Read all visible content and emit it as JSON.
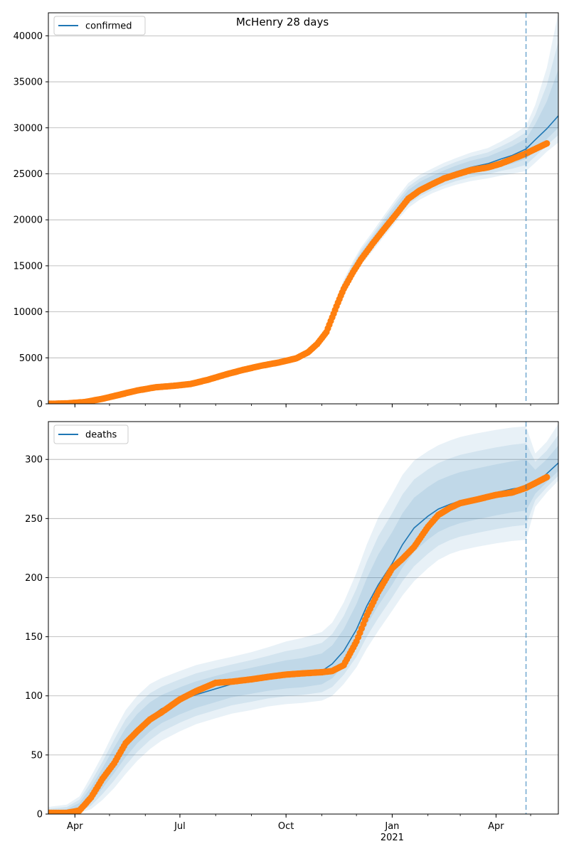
{
  "title": "McHenry 28 days",
  "colors": {
    "model_line": "#1f77b4",
    "observed_points": "#ff7f0e",
    "band": "#1f77b4",
    "forecast_start_line": "#1f77b4",
    "grid": "#b0b0b0"
  },
  "x_ticks": [
    {
      "label": "Apr",
      "date": "2020-04-01",
      "sublabel": ""
    },
    {
      "label": "Jul",
      "date": "2020-07-01",
      "sublabel": ""
    },
    {
      "label": "Oct",
      "date": "2020-10-01",
      "sublabel": ""
    },
    {
      "label": "Jan",
      "date": "2021-01-01",
      "sublabel": "2021"
    },
    {
      "label": "Apr",
      "date": "2021-04-01",
      "sublabel": ""
    }
  ],
  "chart_data": [
    {
      "type": "line",
      "legend": "confirmed",
      "legend_position": "top-left",
      "grid": "horizontal",
      "x_range": [
        "2020-03-09",
        "2021-05-25"
      ],
      "ylim": [
        0,
        42500
      ],
      "yticks": [
        0,
        5000,
        10000,
        15000,
        20000,
        25000,
        30000,
        35000,
        40000
      ],
      "forecast_start": "2021-04-27",
      "model": {
        "dates": [
          "2020-03-09",
          "2020-03-25",
          "2020-04-10",
          "2020-04-25",
          "2020-05-10",
          "2020-05-25",
          "2020-06-10",
          "2020-06-25",
          "2020-07-10",
          "2020-07-25",
          "2020-08-10",
          "2020-08-25",
          "2020-09-10",
          "2020-09-25",
          "2020-10-10",
          "2020-10-20",
          "2020-10-28",
          "2020-11-05",
          "2020-11-10",
          "2020-11-15",
          "2020-11-20",
          "2020-11-28",
          "2020-12-05",
          "2020-12-15",
          "2020-12-25",
          "2021-01-05",
          "2021-01-15",
          "2021-01-25",
          "2021-02-05",
          "2021-02-15",
          "2021-02-25",
          "2021-03-10",
          "2021-03-25",
          "2021-04-05",
          "2021-04-15",
          "2021-04-27",
          "2021-05-05",
          "2021-05-15",
          "2021-05-25"
        ],
        "values": [
          0,
          80,
          250,
          600,
          1050,
          1450,
          1800,
          1950,
          2150,
          2600,
          3200,
          3700,
          4150,
          4500,
          4900,
          5500,
          6400,
          7900,
          9500,
          11200,
          12700,
          14600,
          16000,
          17600,
          19300,
          21100,
          22600,
          23500,
          24200,
          24700,
          25200,
          25700,
          26100,
          26600,
          27000,
          27700,
          28700,
          29900,
          31300
        ],
        "band_outer": [
          [
            0,
            200
          ],
          [
            0,
            250
          ],
          [
            120,
            420
          ],
          [
            420,
            850
          ],
          [
            800,
            1350
          ],
          [
            1150,
            1800
          ],
          [
            1500,
            2150
          ],
          [
            1650,
            2300
          ],
          [
            1850,
            2500
          ],
          [
            2300,
            2950
          ],
          [
            2900,
            3550
          ],
          [
            3400,
            4050
          ],
          [
            3850,
            4500
          ],
          [
            4200,
            4850
          ],
          [
            4600,
            5250
          ],
          [
            5200,
            5850
          ],
          [
            6100,
            6800
          ],
          [
            7500,
            8300
          ],
          [
            9000,
            10050
          ],
          [
            10600,
            11900
          ],
          [
            12000,
            13500
          ],
          [
            13800,
            15500
          ],
          [
            15100,
            17000
          ],
          [
            16600,
            18700
          ],
          [
            18200,
            20500
          ],
          [
            19900,
            22400
          ],
          [
            21300,
            24000
          ],
          [
            22200,
            24900
          ],
          [
            22900,
            25600
          ],
          [
            23400,
            26200
          ],
          [
            23800,
            26700
          ],
          [
            24200,
            27300
          ],
          [
            24500,
            27800
          ],
          [
            24800,
            28500
          ],
          [
            25000,
            29200
          ],
          [
            25300,
            30200
          ],
          [
            26200,
            32500
          ],
          [
            27400,
            36500
          ],
          [
            28400,
            42500
          ]
        ]
      },
      "observed": {
        "dates": [
          "2020-03-09",
          "2020-03-25",
          "2020-04-10",
          "2020-04-25",
          "2020-05-10",
          "2020-05-25",
          "2020-06-10",
          "2020-06-25",
          "2020-07-10",
          "2020-07-25",
          "2020-08-10",
          "2020-08-25",
          "2020-09-10",
          "2020-09-25",
          "2020-10-10",
          "2020-10-20",
          "2020-10-28",
          "2020-11-05",
          "2020-11-10",
          "2020-11-15",
          "2020-11-20",
          "2020-11-28",
          "2020-12-05",
          "2020-12-15",
          "2020-12-25",
          "2021-01-05",
          "2021-01-15",
          "2021-01-25",
          "2021-02-05",
          "2021-02-15",
          "2021-02-25",
          "2021-03-10",
          "2021-03-25",
          "2021-04-05",
          "2021-04-15",
          "2021-04-25",
          "2021-05-05",
          "2021-05-15"
        ],
        "values": [
          0,
          50,
          200,
          550,
          1000,
          1450,
          1800,
          1950,
          2150,
          2600,
          3200,
          3700,
          4150,
          4500,
          4950,
          5600,
          6500,
          7800,
          9400,
          11000,
          12500,
          14300,
          15700,
          17400,
          19000,
          20700,
          22300,
          23200,
          23900,
          24500,
          24900,
          25400,
          25700,
          26100,
          26600,
          27100,
          27700,
          28300
        ]
      }
    },
    {
      "type": "line",
      "legend": "deaths",
      "legend_position": "top-left",
      "grid": "horizontal",
      "x_range": [
        "2020-03-09",
        "2021-05-25"
      ],
      "ylim": [
        0,
        332
      ],
      "yticks": [
        0,
        50,
        100,
        150,
        200,
        250,
        300
      ],
      "forecast_start": "2021-04-27",
      "model": {
        "dates": [
          "2020-03-09",
          "2020-03-25",
          "2020-04-05",
          "2020-04-15",
          "2020-04-25",
          "2020-05-05",
          "2020-05-15",
          "2020-05-25",
          "2020-06-05",
          "2020-06-15",
          "2020-07-01",
          "2020-07-15",
          "2020-08-01",
          "2020-08-15",
          "2020-09-01",
          "2020-09-15",
          "2020-10-01",
          "2020-10-15",
          "2020-11-01",
          "2020-11-10",
          "2020-11-20",
          "2020-12-01",
          "2020-12-10",
          "2020-12-20",
          "2021-01-01",
          "2021-01-10",
          "2021-01-20",
          "2021-02-01",
          "2021-02-10",
          "2021-02-20",
          "2021-03-01",
          "2021-03-15",
          "2021-04-01",
          "2021-04-15",
          "2021-04-27",
          "2021-05-05",
          "2021-05-15",
          "2021-05-25"
        ],
        "values": [
          0,
          1,
          5,
          15,
          30,
          45,
          60,
          72,
          82,
          89,
          96,
          101,
          106,
          110,
          113,
          115,
          117,
          118,
          121,
          127,
          138,
          156,
          176,
          194,
          212,
          228,
          242,
          252,
          258,
          262,
          265,
          268,
          272,
          275,
          277,
          280,
          288,
          297
        ],
        "band_outer": [
          [
            0,
            6
          ],
          [
            0,
            8
          ],
          [
            1,
            15
          ],
          [
            4,
            32
          ],
          [
            12,
            50
          ],
          [
            22,
            70
          ],
          [
            34,
            88
          ],
          [
            45,
            100
          ],
          [
            55,
            110
          ],
          [
            62,
            115
          ],
          [
            70,
            121
          ],
          [
            76,
            126
          ],
          [
            81,
            130
          ],
          [
            85,
            133
          ],
          [
            88,
            137
          ],
          [
            91,
            141
          ],
          [
            93,
            146
          ],
          [
            94,
            149
          ],
          [
            96,
            154
          ],
          [
            100,
            162
          ],
          [
            110,
            179
          ],
          [
            124,
            204
          ],
          [
            140,
            228
          ],
          [
            155,
            251
          ],
          [
            172,
            271
          ],
          [
            185,
            287
          ],
          [
            197,
            299
          ],
          [
            208,
            307
          ],
          [
            215,
            312
          ],
          [
            220,
            316
          ],
          [
            223,
            319
          ],
          [
            226,
            322
          ],
          [
            229,
            325
          ],
          [
            231,
            327
          ],
          [
            232,
            328
          ],
          [
            260,
            305
          ],
          [
            272,
            315
          ],
          [
            282,
            330
          ]
        ]
      },
      "observed": {
        "dates": [
          "2020-03-09",
          "2020-03-25",
          "2020-04-05",
          "2020-04-15",
          "2020-04-25",
          "2020-05-05",
          "2020-05-15",
          "2020-05-25",
          "2020-06-05",
          "2020-06-15",
          "2020-07-01",
          "2020-07-15",
          "2020-08-01",
          "2020-08-15",
          "2020-09-01",
          "2020-09-15",
          "2020-10-01",
          "2020-10-15",
          "2020-11-01",
          "2020-11-10",
          "2020-11-20",
          "2020-12-01",
          "2020-12-10",
          "2020-12-20",
          "2021-01-01",
          "2021-01-10",
          "2021-01-20",
          "2021-02-01",
          "2021-02-10",
          "2021-02-20",
          "2021-03-01",
          "2021-03-15",
          "2021-04-01",
          "2021-04-15",
          "2021-04-27",
          "2021-05-05",
          "2021-05-15"
        ],
        "values": [
          1,
          1,
          3,
          14,
          30,
          43,
          60,
          70,
          80,
          86,
          97,
          104,
          111,
          112,
          114,
          116,
          118,
          119,
          120,
          121,
          126,
          146,
          168,
          188,
          208,
          216,
          226,
          243,
          253,
          259,
          263,
          266,
          270,
          272,
          276,
          280,
          285
        ]
      }
    }
  ]
}
